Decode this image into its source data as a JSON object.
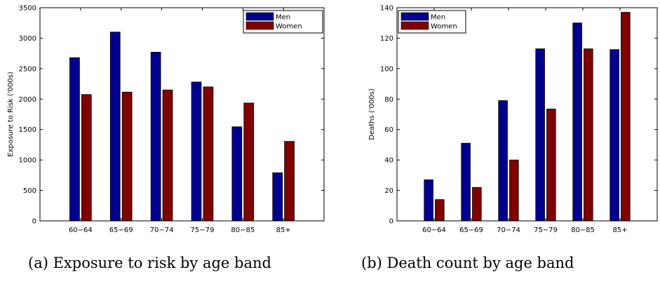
{
  "colors": {
    "men": "#00008f",
    "women": "#800000"
  },
  "chart_data": [
    {
      "type": "bar",
      "categories": [
        "60−64",
        "65−69",
        "70−74",
        "75−79",
        "80−85",
        "85+"
      ],
      "series": [
        {
          "name": "Men",
          "values": [
            2680,
            3100,
            2770,
            2280,
            1545,
            790
          ]
        },
        {
          "name": "Women",
          "values": [
            2075,
            2115,
            2150,
            2200,
            1935,
            1305
          ]
        }
      ],
      "title": "",
      "xlabel": "",
      "ylabel": "Exposure to Risk ('000s)",
      "ylim": [
        0,
        3500
      ],
      "yticks": [
        0,
        500,
        1000,
        1500,
        2000,
        2500,
        3000,
        3500
      ],
      "ytick_labels": [
        "0",
        "500",
        "1000",
        "1500",
        "2000",
        "2500",
        "3000",
        "3500"
      ],
      "legend": "top-right",
      "grid": false
    },
    {
      "type": "bar",
      "categories": [
        "60−64",
        "65−69",
        "70−74",
        "75−79",
        "80−85",
        "85+"
      ],
      "series": [
        {
          "name": "Men",
          "values": [
            27,
            51,
            79,
            113,
            130,
            112.5
          ]
        },
        {
          "name": "Women",
          "values": [
            14,
            22,
            40,
            73.5,
            113,
            137
          ]
        }
      ],
      "title": "",
      "xlabel": "",
      "ylabel": "Deaths ('000s)",
      "ylim": [
        0,
        140
      ],
      "yticks": [
        0,
        20,
        40,
        60,
        80,
        100,
        120,
        140
      ],
      "ytick_labels": [
        "0",
        "20",
        "40",
        "60",
        "80",
        "100",
        "120",
        "140"
      ],
      "legend": "top-left",
      "grid": false
    }
  ],
  "captions": {
    "a": "(a) Exposure to risk by age band",
    "b": "(b) Death count by age band"
  }
}
